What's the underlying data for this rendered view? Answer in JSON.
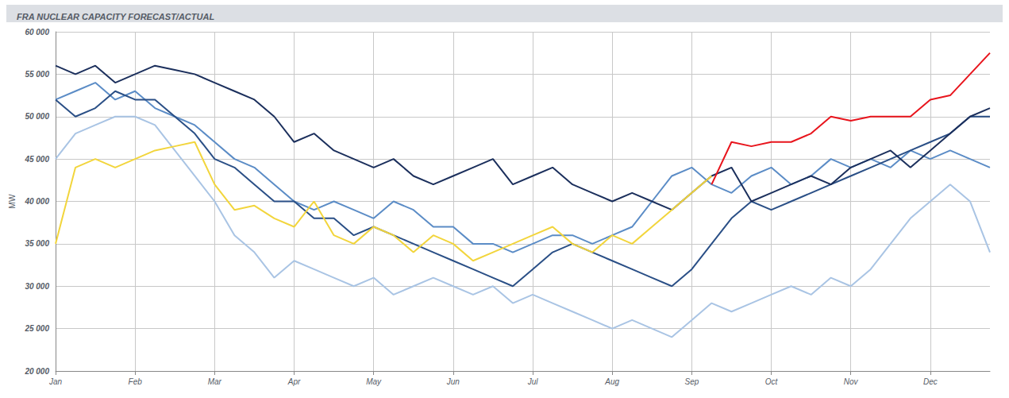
{
  "chart_data": {
    "type": "line",
    "title": "FRA NUCLEAR CAPACITY FORECAST/ACTUAL",
    "y_label": "MW",
    "categories": [
      "Jan",
      null,
      null,
      null,
      "Feb",
      null,
      null,
      null,
      "Mar",
      null,
      null,
      null,
      "Apr",
      null,
      null,
      null,
      "May",
      null,
      null,
      null,
      "Jun",
      null,
      null,
      null,
      "Jul",
      null,
      null,
      null,
      "Aug",
      null,
      null,
      null,
      "Sep",
      null,
      null,
      null,
      "Oct",
      null,
      null,
      null,
      "Nov",
      null,
      null,
      null,
      "Dec",
      null,
      null,
      null
    ],
    "series": [
      {
        "color": "#a9c4e4",
        "values": [
          45000,
          48000,
          49000,
          50000,
          50000,
          49000,
          46000,
          43000,
          40000,
          36000,
          34000,
          31000,
          33000,
          32000,
          31000,
          30000,
          31000,
          29000,
          30000,
          31000,
          30000,
          29000,
          30000,
          28000,
          29000,
          28000,
          27000,
          26000,
          25000,
          26000,
          25000,
          24000,
          26000,
          28000,
          27000,
          28000,
          29000,
          30000,
          29000,
          31000,
          30000,
          32000,
          35000,
          38000,
          40000,
          42000,
          40000,
          34000
        ]
      },
      {
        "color": "#5b8cc6",
        "values": [
          52000,
          53000,
          54000,
          52000,
          53000,
          51000,
          50000,
          49000,
          47000,
          45000,
          44000,
          42000,
          40000,
          39000,
          40000,
          39000,
          38000,
          40000,
          39000,
          37000,
          37000,
          35000,
          35000,
          34000,
          35000,
          36000,
          36000,
          35000,
          36000,
          37000,
          40000,
          43000,
          44000,
          42000,
          41000,
          43000,
          44000,
          42000,
          43000,
          45000,
          44000,
          45000,
          44000,
          46000,
          45000,
          46000,
          45000,
          44000
        ]
      },
      {
        "color": "#2a4f86",
        "values": [
          52000,
          50000,
          51000,
          53000,
          52000,
          52000,
          50000,
          48000,
          45000,
          44000,
          42000,
          40000,
          40000,
          38000,
          38000,
          36000,
          37000,
          36000,
          35000,
          34000,
          33000,
          32000,
          31000,
          30000,
          32000,
          34000,
          35000,
          34000,
          33000,
          32000,
          31000,
          30000,
          32000,
          35000,
          38000,
          40000,
          39000,
          40000,
          41000,
          42000,
          43000,
          44000,
          45000,
          46000,
          47000,
          48000,
          50000,
          50000
        ]
      },
      {
        "color": "#1b2f5c",
        "values": [
          56000,
          55000,
          56000,
          54000,
          55000,
          56000,
          55500,
          55000,
          54000,
          53000,
          52000,
          50000,
          47000,
          48000,
          46000,
          45000,
          44000,
          45000,
          43000,
          42000,
          43000,
          44000,
          45000,
          42000,
          43000,
          44000,
          42000,
          41000,
          40000,
          41000,
          40000,
          39000,
          41000,
          43000,
          44000,
          40000,
          41000,
          42000,
          43000,
          42000,
          44000,
          45000,
          46000,
          44000,
          46000,
          48000,
          50000,
          51000
        ]
      },
      {
        "color": "#f2d53c",
        "values": [
          35000,
          44000,
          45000,
          44000,
          45000,
          46000,
          46500,
          47000,
          42000,
          39000,
          39500,
          38000,
          37000,
          40000,
          36000,
          35000,
          37000,
          36000,
          34000,
          36000,
          35000,
          33000,
          34000,
          35000,
          36000,
          37000,
          35000,
          34000,
          36000,
          35000,
          37000,
          39000,
          41000,
          43000,
          null,
          null,
          null,
          null,
          null,
          null,
          null,
          null,
          null,
          null,
          null,
          null,
          null,
          null
        ]
      },
      {
        "color": "#e8141c",
        "values": [
          null,
          null,
          null,
          null,
          null,
          null,
          null,
          null,
          null,
          null,
          null,
          null,
          null,
          null,
          null,
          null,
          null,
          null,
          null,
          null,
          null,
          null,
          null,
          null,
          null,
          null,
          null,
          null,
          null,
          null,
          null,
          null,
          null,
          42000,
          47000,
          46500,
          47000,
          47000,
          48000,
          50000,
          49500,
          50000,
          50000,
          50000,
          52000,
          52500,
          55000,
          57500
        ]
      }
    ],
    "ylim": [
      20000,
      60000
    ],
    "yticks": [
      {
        "value": 20000,
        "label": "20 000"
      },
      {
        "value": 25000,
        "label": "25 000"
      },
      {
        "value": 30000,
        "label": "30 000"
      },
      {
        "value": 35000,
        "label": "35 000"
      },
      {
        "value": 40000,
        "label": "40 000"
      },
      {
        "value": 45000,
        "label": "45 000"
      },
      {
        "value": 50000,
        "label": "50 000"
      },
      {
        "value": 55000,
        "label": "55 000"
      },
      {
        "value": 60000,
        "label": "60 000"
      }
    ],
    "grid": true
  }
}
